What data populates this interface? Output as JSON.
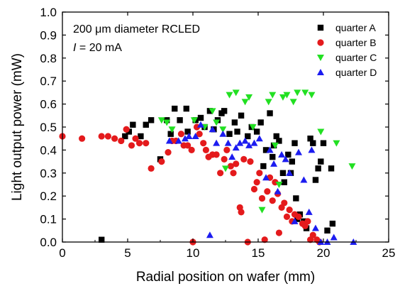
{
  "chart_data": {
    "type": "scatter",
    "title": "",
    "xlabel": "Radial position on wafer (mm)",
    "ylabel": "Light output power (mW)",
    "xlim": [
      0,
      25
    ],
    "ylim": [
      0,
      1.0
    ],
    "xticks": [
      "0",
      "5",
      "10",
      "15",
      "20",
      "25"
    ],
    "yticks": [
      "0.0",
      "0.1",
      "0.2",
      "0.3",
      "0.4",
      "0.5",
      "0.6",
      "0.7",
      "0.8",
      "0.9",
      "1.0"
    ],
    "grid": false,
    "legend_position": "top-right",
    "annotation": {
      "line1": "200 μm diameter RCLED",
      "line2_italic": "I",
      "line2_rest": " = 20 mA"
    },
    "series": [
      {
        "name": "quarter A",
        "marker": "square",
        "color": "#000000",
        "points": [
          [
            3.0,
            0.01
          ],
          [
            4.8,
            0.46
          ],
          [
            5.1,
            0.48
          ],
          [
            5.4,
            0.51
          ],
          [
            6.0,
            0.46
          ],
          [
            6.4,
            0.51
          ],
          [
            6.8,
            0.53
          ],
          [
            7.5,
            0.36
          ],
          [
            8.0,
            0.53
          ],
          [
            8.3,
            0.47
          ],
          [
            8.6,
            0.58
          ],
          [
            9.0,
            0.53
          ],
          [
            9.5,
            0.58
          ],
          [
            9.6,
            0.48
          ],
          [
            10.2,
            0.53
          ],
          [
            10.6,
            0.54
          ],
          [
            10.9,
            0.5
          ],
          [
            11.3,
            0.57
          ],
          [
            11.6,
            0.49
          ],
          [
            11.9,
            0.53
          ],
          [
            12.2,
            0.56
          ],
          [
            12.4,
            0.57
          ],
          [
            12.8,
            0.47
          ],
          [
            13.2,
            0.52
          ],
          [
            13.4,
            0.48
          ],
          [
            13.7,
            0.55
          ],
          [
            14.2,
            0.46
          ],
          [
            14.5,
            0.5
          ],
          [
            14.9,
            0.48
          ],
          [
            15.2,
            0.52
          ],
          [
            15.4,
            0.33
          ],
          [
            15.6,
            0.4
          ],
          [
            15.9,
            0.56
          ],
          [
            16.1,
            0.37
          ],
          [
            16.2,
            0.42
          ],
          [
            16.4,
            0.46
          ],
          [
            16.6,
            0.44
          ],
          [
            16.9,
            0.3
          ],
          [
            17.0,
            0.26
          ],
          [
            17.3,
            0.38
          ],
          [
            17.5,
            0.3
          ],
          [
            17.6,
            0.35
          ],
          [
            17.8,
            0.43
          ],
          [
            17.9,
            0.19
          ],
          [
            18.0,
            0.1
          ],
          [
            18.2,
            0.12
          ],
          [
            18.5,
            0.09
          ],
          [
            18.7,
            0.06
          ],
          [
            19.0,
            0.45
          ],
          [
            19.2,
            0.43
          ],
          [
            19.4,
            0.27
          ],
          [
            19.6,
            0.32
          ],
          [
            19.8,
            0.35
          ],
          [
            20.0,
            0.43
          ],
          [
            20.3,
            0.05
          ],
          [
            20.6,
            0.32
          ],
          [
            20.7,
            0.08
          ]
        ]
      },
      {
        "name": "quarter B",
        "marker": "circle",
        "color": "#e41a1c",
        "points": [
          [
            0.0,
            0.46
          ],
          [
            1.5,
            0.45
          ],
          [
            3.0,
            0.46
          ],
          [
            3.5,
            0.46
          ],
          [
            4.0,
            0.45
          ],
          [
            4.5,
            0.44
          ],
          [
            4.9,
            0.49
          ],
          [
            5.3,
            0.42
          ],
          [
            5.6,
            0.45
          ],
          [
            5.9,
            0.43
          ],
          [
            6.4,
            0.43
          ],
          [
            6.8,
            0.32
          ],
          [
            7.6,
            0.35
          ],
          [
            8.1,
            0.39
          ],
          [
            8.4,
            0.44
          ],
          [
            8.7,
            0.44
          ],
          [
            9.1,
            0.47
          ],
          [
            9.3,
            0.42
          ],
          [
            9.6,
            0.42
          ],
          [
            9.9,
            0.4
          ],
          [
            10.0,
            0.0
          ],
          [
            10.3,
            0.5
          ],
          [
            10.5,
            0.47
          ],
          [
            10.8,
            0.43
          ],
          [
            11.0,
            0.4
          ],
          [
            11.2,
            0.37
          ],
          [
            11.5,
            0.38
          ],
          [
            11.8,
            0.38
          ],
          [
            12.1,
            0.3
          ],
          [
            12.4,
            0.36
          ],
          [
            12.6,
            0.4
          ],
          [
            12.9,
            0.33
          ],
          [
            13.1,
            0.3
          ],
          [
            13.3,
            0.34
          ],
          [
            13.6,
            0.15
          ],
          [
            13.7,
            0.13
          ],
          [
            13.9,
            0.36
          ],
          [
            14.2,
            0.0
          ],
          [
            14.4,
            0.35
          ],
          [
            14.7,
            0.23
          ],
          [
            14.9,
            0.26
          ],
          [
            15.1,
            0.3
          ],
          [
            15.3,
            0.19
          ],
          [
            15.5,
            0.01
          ],
          [
            15.7,
            0.22
          ],
          [
            15.9,
            0.28
          ],
          [
            16.1,
            0.18
          ],
          [
            16.3,
            0.26
          ],
          [
            16.5,
            0.21
          ],
          [
            16.6,
            0.04
          ],
          [
            16.8,
            0.15
          ],
          [
            17.0,
            0.17
          ],
          [
            17.2,
            0.11
          ],
          [
            17.4,
            0.14
          ],
          [
            17.6,
            0.09
          ],
          [
            17.8,
            0.12
          ],
          [
            18.1,
            0.11
          ],
          [
            18.4,
            0.08
          ],
          [
            18.6,
            0.07
          ],
          [
            18.8,
            0.09
          ],
          [
            19.0,
            0.01
          ],
          [
            19.2,
            0.03
          ],
          [
            19.5,
            0.01
          ],
          [
            19.7,
            0.0
          ]
        ]
      },
      {
        "name": "quarter C",
        "marker": "triangle-down",
        "color": "#22e022",
        "points": [
          [
            7.6,
            0.53
          ],
          [
            8.0,
            0.52
          ],
          [
            8.4,
            0.49
          ],
          [
            10.1,
            0.53
          ],
          [
            10.9,
            0.5
          ],
          [
            11.5,
            0.57
          ],
          [
            11.8,
            0.52
          ],
          [
            12.3,
            0.49
          ],
          [
            12.5,
            0.32
          ],
          [
            12.8,
            0.64
          ],
          [
            13.3,
            0.65
          ],
          [
            14.0,
            0.61
          ],
          [
            14.3,
            0.63
          ],
          [
            14.6,
            0.5
          ],
          [
            15.3,
            0.14
          ],
          [
            15.8,
            0.61
          ],
          [
            16.1,
            0.64
          ],
          [
            16.3,
            0.42
          ],
          [
            16.6,
            0.25
          ],
          [
            16.9,
            0.63
          ],
          [
            17.2,
            0.64
          ],
          [
            17.7,
            0.61
          ],
          [
            18.0,
            0.65
          ],
          [
            18.6,
            0.65
          ],
          [
            19.1,
            0.64
          ],
          [
            19.8,
            0.48
          ],
          [
            21.0,
            0.43
          ],
          [
            22.2,
            0.33
          ]
        ]
      },
      {
        "name": "quarter D",
        "marker": "triangle-up",
        "color": "#1c1cf0",
        "points": [
          [
            8.2,
            0.44
          ],
          [
            8.9,
            0.44
          ],
          [
            9.4,
            0.45
          ],
          [
            9.7,
            0.46
          ],
          [
            10.2,
            0.46
          ],
          [
            10.6,
            0.51
          ],
          [
            11.3,
            0.03
          ],
          [
            11.5,
            0.49
          ],
          [
            11.8,
            0.43
          ],
          [
            12.3,
            0.47
          ],
          [
            12.7,
            0.43
          ],
          [
            13.0,
            0.37
          ],
          [
            13.3,
            0.41
          ],
          [
            13.6,
            0.43
          ],
          [
            14.0,
            0.44
          ],
          [
            14.3,
            0.42
          ],
          [
            14.7,
            0.43
          ],
          [
            15.1,
            0.45
          ],
          [
            15.6,
            0.28
          ],
          [
            15.9,
            0.4
          ],
          [
            16.2,
            0.34
          ],
          [
            16.5,
            0.22
          ],
          [
            16.8,
            0.38
          ],
          [
            17.1,
            0.36
          ],
          [
            17.4,
            0.3
          ],
          [
            17.8,
            0.09
          ],
          [
            18.1,
            0.39
          ],
          [
            18.5,
            0.27
          ],
          [
            18.9,
            0.13
          ],
          [
            19.1,
            0.4
          ],
          [
            19.4,
            0.06
          ],
          [
            19.8,
            0.0
          ],
          [
            20.3,
            0.0
          ],
          [
            20.8,
            0.02
          ],
          [
            22.3,
            0.0
          ]
        ]
      }
    ]
  }
}
